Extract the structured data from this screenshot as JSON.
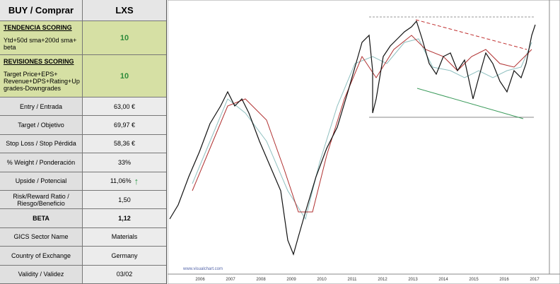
{
  "table": {
    "header": [
      "BUY / Comprar",
      "LXS"
    ],
    "scoring": [
      {
        "title": "TENDENCIA SCORING",
        "description": "Ytd+50d sma+200d sma+ beta",
        "value": "10"
      },
      {
        "title": "REVISIONES SCORING",
        "description": "Target Price+EPS+ Revenue+DPS+Rating+Up grades-Downgrades",
        "value": "10"
      }
    ],
    "rows": [
      [
        "Entry / Entrada",
        "63,00 €"
      ],
      [
        "Target / Objetivo",
        "69,97 €"
      ],
      [
        "Stop Loss / Stop Pérdida",
        "58,36 €"
      ],
      [
        "% Weight / Ponderación",
        "33%"
      ],
      [
        "Upside / Potencial",
        "11,06%"
      ],
      [
        "Risk/Reward  Ratio / Riesgo/Beneficio",
        "1,50"
      ],
      [
        "BETA",
        "1,12"
      ],
      [
        "GICS Sector Name",
        "Materials"
      ],
      [
        "Country of Exchange",
        "Germany"
      ],
      [
        "Validity / Validez",
        "03/02"
      ]
    ]
  },
  "chart": {
    "x_labels": [
      "2006",
      "2007",
      "2008",
      "2009",
      "2010",
      "2011",
      "2012",
      "2013",
      "2014",
      "2015",
      "2016",
      "2017"
    ],
    "watermark": "www.visualchart.com"
  }
}
